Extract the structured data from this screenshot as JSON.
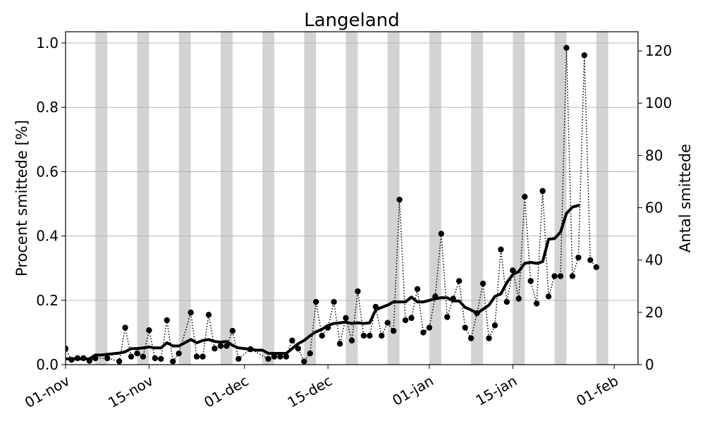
{
  "chart_data": {
    "type": "line",
    "title": "Langeland",
    "ylabel": "Procent smittede [%]",
    "ylabel_right": "Antal smittede",
    "ylim": [
      0,
      1.035
    ],
    "ylim_right": [
      0,
      127.3
    ],
    "xlim": [
      "2020-11-01",
      "2021-02-05"
    ],
    "x_tick_labels": [
      "01-nov",
      "15-nov",
      "01-dec",
      "15-dec",
      "01-jan",
      "15-jan",
      "01-feb"
    ],
    "x_tick_dates": [
      "2020-11-01",
      "2020-11-15",
      "2020-12-01",
      "2020-12-15",
      "2021-01-01",
      "2021-01-15",
      "2021-02-01"
    ],
    "y_ticks": [
      0.0,
      0.2,
      0.4,
      0.6,
      0.8,
      1.0
    ],
    "y_tick_labels": [
      "0.0",
      "0.2",
      "0.4",
      "0.6",
      "0.8",
      "1.0"
    ],
    "y_right_ticks": [
      0,
      20,
      40,
      60,
      80,
      100,
      120
    ],
    "y_right_tick_labels": [
      "0",
      "20",
      "40",
      "60",
      "80",
      "100",
      "120"
    ],
    "grid": "horizontal",
    "weekend_bands": [
      [
        "2020-11-06",
        "2020-11-08"
      ],
      [
        "2020-11-13",
        "2020-11-15"
      ],
      [
        "2020-11-20",
        "2020-11-22"
      ],
      [
        "2020-11-27",
        "2020-11-29"
      ],
      [
        "2020-12-04",
        "2020-12-06"
      ],
      [
        "2020-12-11",
        "2020-12-13"
      ],
      [
        "2020-12-18",
        "2020-12-20"
      ],
      [
        "2020-12-25",
        "2020-12-27"
      ],
      [
        "2021-01-01",
        "2021-01-03"
      ],
      [
        "2021-01-08",
        "2021-01-10"
      ],
      [
        "2021-01-15",
        "2021-01-17"
      ],
      [
        "2021-01-22",
        "2021-01-24"
      ],
      [
        "2021-01-29",
        "2021-01-31"
      ],
      [
        "2021-02-05",
        "2021-02-07"
      ]
    ],
    "series": [
      {
        "style": "dotted-with-markers",
        "points": [
          [
            "2020-11-01",
            0.05
          ],
          [
            "2020-11-02",
            0.015
          ],
          [
            "2020-11-03",
            0.02
          ],
          [
            "2020-11-04",
            0.02
          ],
          [
            "2020-11-05",
            0.012
          ],
          [
            "2020-11-06",
            0.02
          ],
          [
            "2020-11-08",
            0.02
          ],
          [
            "2020-11-10",
            0.01
          ],
          [
            "2020-11-11",
            0.115
          ],
          [
            "2020-11-12",
            0.025
          ],
          [
            "2020-11-13",
            0.035
          ],
          [
            "2020-11-14",
            0.025
          ],
          [
            "2020-11-15",
            0.107
          ],
          [
            "2020-11-16",
            0.02
          ],
          [
            "2020-11-17",
            0.018
          ],
          [
            "2020-11-18",
            0.138
          ],
          [
            "2020-11-19",
            0.01
          ],
          [
            "2020-11-20",
            0.035
          ],
          [
            "2020-11-22",
            0.162
          ],
          [
            "2020-11-23",
            0.025
          ],
          [
            "2020-11-24",
            0.025
          ],
          [
            "2020-11-25",
            0.155
          ],
          [
            "2020-11-26",
            0.05
          ],
          [
            "2020-11-27",
            0.058
          ],
          [
            "2020-11-28",
            0.058
          ],
          [
            "2020-11-29",
            0.105
          ],
          [
            "2020-11-30",
            0.018
          ],
          [
            "2020-12-02",
            0.048
          ],
          [
            "2020-12-05",
            0.018
          ],
          [
            "2020-12-06",
            0.025
          ],
          [
            "2020-12-07",
            0.025
          ],
          [
            "2020-12-08",
            0.025
          ],
          [
            "2020-12-09",
            0.075
          ],
          [
            "2020-12-10",
            0.05
          ],
          [
            "2020-12-11",
            0.01
          ],
          [
            "2020-12-12",
            0.035
          ],
          [
            "2020-12-13",
            0.195
          ],
          [
            "2020-12-14",
            0.09
          ],
          [
            "2020-12-15",
            0.115
          ],
          [
            "2020-12-16",
            0.195
          ],
          [
            "2020-12-17",
            0.065
          ],
          [
            "2020-12-18",
            0.145
          ],
          [
            "2020-12-19",
            0.075
          ],
          [
            "2020-12-20",
            0.228
          ],
          [
            "2020-12-21",
            0.09
          ],
          [
            "2020-12-22",
            0.09
          ],
          [
            "2020-12-23",
            0.18
          ],
          [
            "2020-12-24",
            0.09
          ],
          [
            "2020-12-25",
            0.13
          ],
          [
            "2020-12-26",
            0.105
          ],
          [
            "2020-12-27",
            0.513
          ],
          [
            "2020-12-28",
            0.138
          ],
          [
            "2020-12-29",
            0.145
          ],
          [
            "2020-12-30",
            0.235
          ],
          [
            "2020-12-31",
            0.1
          ],
          [
            "2021-01-01",
            0.115
          ],
          [
            "2021-01-02",
            0.212
          ],
          [
            "2021-01-03",
            0.407
          ],
          [
            "2021-01-04",
            0.148
          ],
          [
            "2021-01-05",
            0.205
          ],
          [
            "2021-01-06",
            0.26
          ],
          [
            "2021-01-07",
            0.115
          ],
          [
            "2021-01-08",
            0.082
          ],
          [
            "2021-01-09",
            0.16
          ],
          [
            "2021-01-10",
            0.252
          ],
          [
            "2021-01-11",
            0.082
          ],
          [
            "2021-01-12",
            0.122
          ],
          [
            "2021-01-13",
            0.358
          ],
          [
            "2021-01-14",
            0.195
          ],
          [
            "2021-01-15",
            0.293
          ],
          [
            "2021-01-16",
            0.205
          ],
          [
            "2021-01-17",
            0.522
          ],
          [
            "2021-01-18",
            0.26
          ],
          [
            "2021-01-19",
            0.19
          ],
          [
            "2021-01-20",
            0.54
          ],
          [
            "2021-01-21",
            0.212
          ],
          [
            "2021-01-22",
            0.275
          ],
          [
            "2021-01-23",
            0.275
          ],
          [
            "2021-01-24",
            0.985
          ],
          [
            "2021-01-25",
            0.275
          ],
          [
            "2021-01-26",
            0.333
          ],
          [
            "2021-01-27",
            0.962
          ],
          [
            "2021-01-28",
            0.325
          ],
          [
            "2021-01-29",
            0.303
          ]
        ]
      },
      {
        "style": "thick-solid",
        "points": [
          [
            "2020-11-01",
            0.018
          ],
          [
            "2020-11-02",
            0.018
          ],
          [
            "2020-11-03",
            0.018
          ],
          [
            "2020-11-04",
            0.018
          ],
          [
            "2020-11-05",
            0.018
          ],
          [
            "2020-11-06",
            0.03
          ],
          [
            "2020-11-07",
            0.03
          ],
          [
            "2020-11-08",
            0.032
          ],
          [
            "2020-11-09",
            0.034
          ],
          [
            "2020-11-10",
            0.036
          ],
          [
            "2020-11-11",
            0.04
          ],
          [
            "2020-11-12",
            0.05
          ],
          [
            "2020-11-13",
            0.05
          ],
          [
            "2020-11-14",
            0.052
          ],
          [
            "2020-11-15",
            0.055
          ],
          [
            "2020-11-16",
            0.052
          ],
          [
            "2020-11-17",
            0.052
          ],
          [
            "2020-11-18",
            0.068
          ],
          [
            "2020-11-19",
            0.058
          ],
          [
            "2020-11-20",
            0.058
          ],
          [
            "2020-11-21",
            0.068
          ],
          [
            "2020-11-22",
            0.078
          ],
          [
            "2020-11-23",
            0.068
          ],
          [
            "2020-11-24",
            0.075
          ],
          [
            "2020-11-25",
            0.078
          ],
          [
            "2020-11-26",
            0.072
          ],
          [
            "2020-11-27",
            0.07
          ],
          [
            "2020-11-28",
            0.072
          ],
          [
            "2020-11-29",
            0.06
          ],
          [
            "2020-11-30",
            0.052
          ],
          [
            "2020-12-01",
            0.05
          ],
          [
            "2020-12-02",
            0.048
          ],
          [
            "2020-12-03",
            0.045
          ],
          [
            "2020-12-04",
            0.045
          ],
          [
            "2020-12-05",
            0.035
          ],
          [
            "2020-12-06",
            0.035
          ],
          [
            "2020-12-07",
            0.035
          ],
          [
            "2020-12-08",
            0.035
          ],
          [
            "2020-12-09",
            0.05
          ],
          [
            "2020-12-10",
            0.065
          ],
          [
            "2020-12-11",
            0.075
          ],
          [
            "2020-12-12",
            0.09
          ],
          [
            "2020-12-13",
            0.102
          ],
          [
            "2020-12-14",
            0.11
          ],
          [
            "2020-12-15",
            0.122
          ],
          [
            "2020-12-16",
            0.128
          ],
          [
            "2020-12-17",
            0.13
          ],
          [
            "2020-12-18",
            0.132
          ],
          [
            "2020-12-19",
            0.128
          ],
          [
            "2020-12-20",
            0.13
          ],
          [
            "2020-12-21",
            0.128
          ],
          [
            "2020-12-22",
            0.13
          ],
          [
            "2020-12-23",
            0.17
          ],
          [
            "2020-12-24",
            0.178
          ],
          [
            "2020-12-25",
            0.185
          ],
          [
            "2020-12-26",
            0.195
          ],
          [
            "2020-12-27",
            0.195
          ],
          [
            "2020-12-28",
            0.195
          ],
          [
            "2020-12-29",
            0.21
          ],
          [
            "2020-12-30",
            0.195
          ],
          [
            "2020-12-31",
            0.195
          ],
          [
            "2021-01-01",
            0.2
          ],
          [
            "2021-01-02",
            0.205
          ],
          [
            "2021-01-03",
            0.208
          ],
          [
            "2021-01-04",
            0.208
          ],
          [
            "2021-01-05",
            0.198
          ],
          [
            "2021-01-06",
            0.198
          ],
          [
            "2021-01-07",
            0.178
          ],
          [
            "2021-01-08",
            0.17
          ],
          [
            "2021-01-09",
            0.16
          ],
          [
            "2021-01-10",
            0.172
          ],
          [
            "2021-01-11",
            0.185
          ],
          [
            "2021-01-12",
            0.212
          ],
          [
            "2021-01-13",
            0.22
          ],
          [
            "2021-01-14",
            0.255
          ],
          [
            "2021-01-15",
            0.28
          ],
          [
            "2021-01-16",
            0.29
          ],
          [
            "2021-01-17",
            0.315
          ],
          [
            "2021-01-18",
            0.318
          ],
          [
            "2021-01-19",
            0.315
          ],
          [
            "2021-01-20",
            0.32
          ],
          [
            "2021-01-21",
            0.39
          ],
          [
            "2021-01-22",
            0.392
          ],
          [
            "2021-01-23",
            0.412
          ],
          [
            "2021-01-24",
            0.47
          ],
          [
            "2021-01-25",
            0.49
          ],
          [
            "2021-01-26",
            0.495
          ]
        ]
      }
    ]
  }
}
